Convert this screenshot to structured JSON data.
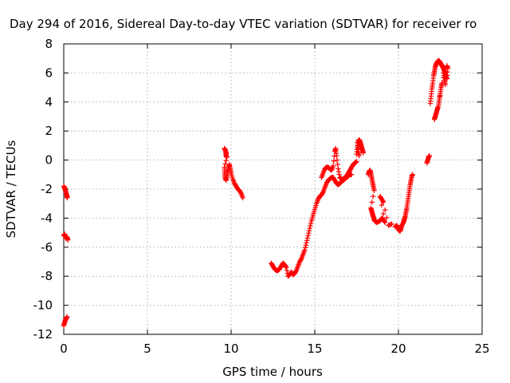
{
  "chart_data": {
    "type": "scatter",
    "title": "Day 294 of 2016, Sidereal Day-to-day VTEC variation (SDTVAR) for receiver ro",
    "xlabel": "GPS time / hours",
    "ylabel": "SDTVAR / TECUs",
    "xlim": [
      0,
      25
    ],
    "ylim": [
      -12,
      8
    ],
    "x_ticks": [
      0,
      5,
      10,
      15,
      20,
      25
    ],
    "y_ticks": [
      -12,
      -10,
      -8,
      -6,
      -4,
      -2,
      0,
      2,
      4,
      6,
      8
    ],
    "grid": true,
    "marker": "+",
    "color": "#ff0000",
    "segments": [
      [
        [
          0.0,
          -1.8
        ],
        [
          0.05,
          -1.9
        ],
        [
          0.1,
          -2.1
        ],
        [
          0.15,
          -2.3
        ],
        [
          0.2,
          -2.5
        ],
        [
          0.2,
          -2.6
        ]
      ],
      [
        [
          0.0,
          -5.2
        ],
        [
          0.05,
          -5.1
        ],
        [
          0.1,
          -5.3
        ],
        [
          0.15,
          -5.4
        ],
        [
          0.2,
          -5.3
        ],
        [
          0.25,
          -5.5
        ]
      ],
      [
        [
          0.0,
          -11.4
        ],
        [
          0.05,
          -11.2
        ],
        [
          0.1,
          -11.0
        ],
        [
          0.15,
          -10.9
        ],
        [
          0.2,
          -10.8
        ]
      ],
      [
        [
          9.6,
          0.8
        ],
        [
          9.65,
          0.7
        ],
        [
          9.7,
          0.5
        ],
        [
          9.7,
          0.3
        ],
        [
          9.75,
          0.2
        ],
        [
          9.6,
          -0.5
        ],
        [
          9.62,
          -0.9
        ],
        [
          9.65,
          -1.2
        ],
        [
          9.7,
          -1.4
        ],
        [
          9.75,
          -1.1
        ],
        [
          9.8,
          -0.8
        ],
        [
          9.85,
          -0.5
        ],
        [
          9.9,
          -0.3
        ],
        [
          9.95,
          -0.6
        ],
        [
          10.0,
          -0.9
        ],
        [
          10.1,
          -1.3
        ],
        [
          10.2,
          -1.6
        ],
        [
          10.3,
          -1.8
        ],
        [
          10.4,
          -2.0
        ],
        [
          10.5,
          -2.1
        ],
        [
          10.6,
          -2.3
        ],
        [
          10.7,
          -2.6
        ]
      ],
      [
        [
          12.4,
          -7.1
        ],
        [
          12.5,
          -7.3
        ],
        [
          12.6,
          -7.5
        ],
        [
          12.7,
          -7.6
        ],
        [
          12.8,
          -7.6
        ],
        [
          12.9,
          -7.5
        ],
        [
          13.0,
          -7.3
        ],
        [
          13.1,
          -7.1
        ],
        [
          13.2,
          -7.2
        ],
        [
          13.3,
          -7.4
        ],
        [
          13.4,
          -8.0
        ],
        [
          13.5,
          -7.9
        ],
        [
          13.6,
          -7.7
        ],
        [
          13.7,
          -7.9
        ],
        [
          13.8,
          -7.8
        ],
        [
          13.9,
          -7.6
        ],
        [
          14.0,
          -7.3
        ],
        [
          14.1,
          -7.0
        ],
        [
          14.2,
          -6.8
        ],
        [
          14.3,
          -6.5
        ],
        [
          14.4,
          -6.2
        ],
        [
          14.5,
          -5.7
        ],
        [
          14.6,
          -5.2
        ],
        [
          14.7,
          -4.7
        ],
        [
          14.8,
          -4.2
        ],
        [
          14.9,
          -3.8
        ],
        [
          15.0,
          -3.4
        ],
        [
          15.1,
          -3.0
        ],
        [
          15.2,
          -2.7
        ],
        [
          15.3,
          -2.5
        ],
        [
          15.4,
          -2.4
        ],
        [
          15.5,
          -2.2
        ],
        [
          15.6,
          -1.9
        ],
        [
          15.7,
          -1.6
        ],
        [
          15.8,
          -1.4
        ],
        [
          15.9,
          -1.3
        ],
        [
          16.0,
          -1.2
        ],
        [
          16.1,
          -1.2
        ],
        [
          16.2,
          -1.4
        ],
        [
          16.3,
          -1.6
        ],
        [
          16.4,
          -1.7
        ],
        [
          16.5,
          -1.6
        ],
        [
          16.6,
          -1.5
        ],
        [
          16.7,
          -1.3
        ],
        [
          16.8,
          -1.2
        ],
        [
          16.9,
          -1.1
        ],
        [
          17.0,
          -0.9
        ],
        [
          17.1,
          -0.7
        ],
        [
          17.2,
          -0.5
        ],
        [
          17.3,
          -0.3
        ],
        [
          17.4,
          -0.2
        ],
        [
          17.5,
          -0.1
        ]
      ],
      [
        [
          15.4,
          -1.2
        ],
        [
          15.5,
          -0.9
        ],
        [
          15.6,
          -0.6
        ],
        [
          15.7,
          -0.5
        ],
        [
          15.8,
          -0.5
        ],
        [
          15.9,
          -0.6
        ],
        [
          16.0,
          -0.7
        ],
        [
          16.1,
          -0.4
        ],
        [
          16.2,
          0.6
        ],
        [
          16.25,
          0.8
        ],
        [
          16.3,
          0.3
        ],
        [
          16.4,
          -0.6
        ],
        [
          16.5,
          -1.2
        ],
        [
          16.6,
          -1.3
        ],
        [
          16.7,
          -1.4
        ],
        [
          16.8,
          -1.3
        ],
        [
          16.9,
          -1.2
        ],
        [
          17.0,
          -1.1
        ],
        [
          17.1,
          -1.0
        ],
        [
          17.2,
          -1.0
        ]
      ],
      [
        [
          17.5,
          0.4
        ],
        [
          17.55,
          0.9
        ],
        [
          17.6,
          1.3
        ],
        [
          17.65,
          1.4
        ],
        [
          17.7,
          1.3
        ],
        [
          17.75,
          1.1
        ],
        [
          17.8,
          0.9
        ],
        [
          17.85,
          0.7
        ],
        [
          17.9,
          0.5
        ],
        [
          17.55,
          1.2
        ],
        [
          17.6,
          0.6
        ],
        [
          17.65,
          0.3
        ]
      ],
      [
        [
          18.2,
          -1.0
        ],
        [
          18.25,
          -0.8
        ],
        [
          18.3,
          -0.7
        ],
        [
          18.35,
          -0.9
        ],
        [
          18.4,
          -1.2
        ],
        [
          18.45,
          -1.5
        ],
        [
          18.5,
          -1.8
        ],
        [
          18.55,
          -2.1
        ],
        [
          18.35,
          -3.3
        ],
        [
          18.4,
          -3.5
        ],
        [
          18.45,
          -3.7
        ],
        [
          18.5,
          -3.9
        ],
        [
          18.55,
          -4.1
        ],
        [
          18.6,
          -4.2
        ],
        [
          18.7,
          -4.3
        ],
        [
          18.9,
          -4.2
        ],
        [
          19.0,
          -4.0
        ],
        [
          19.1,
          -4.1
        ],
        [
          19.2,
          -4.3
        ],
        [
          18.9,
          -2.5
        ],
        [
          19.0,
          -2.7
        ],
        [
          19.1,
          -2.9
        ],
        [
          19.4,
          -4.5
        ],
        [
          19.6,
          -4.4
        ]
      ],
      [
        [
          19.8,
          -4.6
        ],
        [
          19.9,
          -4.5
        ],
        [
          20.0,
          -4.8
        ],
        [
          20.1,
          -4.9
        ],
        [
          20.15,
          -4.7
        ],
        [
          20.2,
          -4.5
        ],
        [
          20.3,
          -4.3
        ],
        [
          20.35,
          -4.1
        ],
        [
          20.4,
          -3.9
        ],
        [
          20.45,
          -3.6
        ],
        [
          20.5,
          -3.3
        ],
        [
          20.55,
          -2.9
        ],
        [
          20.6,
          -2.5
        ],
        [
          20.65,
          -2.1
        ],
        [
          20.7,
          -1.7
        ],
        [
          20.75,
          -1.4
        ],
        [
          20.8,
          -1.1
        ],
        [
          20.85,
          -1.0
        ]
      ],
      [
        [
          21.7,
          -0.2
        ],
        [
          21.75,
          0.0
        ],
        [
          21.8,
          0.2
        ],
        [
          21.85,
          0.3
        ]
      ],
      [
        [
          21.9,
          3.9
        ],
        [
          21.95,
          4.4
        ],
        [
          22.0,
          4.9
        ],
        [
          22.05,
          5.3
        ],
        [
          22.1,
          5.8
        ],
        [
          22.15,
          6.1
        ],
        [
          22.2,
          6.4
        ],
        [
          22.25,
          6.6
        ],
        [
          22.3,
          6.7
        ],
        [
          22.35,
          6.8
        ],
        [
          22.4,
          6.85
        ],
        [
          22.45,
          6.8
        ],
        [
          22.5,
          6.7
        ],
        [
          22.55,
          6.6
        ],
        [
          22.6,
          6.5
        ],
        [
          22.65,
          6.4
        ],
        [
          22.7,
          6.3
        ],
        [
          22.75,
          6.1
        ],
        [
          22.8,
          5.9
        ],
        [
          22.85,
          5.7
        ],
        [
          22.9,
          5.6
        ],
        [
          22.95,
          6.3
        ],
        [
          22.9,
          6.5
        ],
        [
          22.6,
          5.3
        ],
        [
          22.55,
          5.0
        ],
        [
          22.5,
          4.6
        ],
        [
          22.45,
          4.2
        ],
        [
          22.4,
          3.8
        ],
        [
          22.3,
          3.4
        ],
        [
          22.2,
          3.0
        ],
        [
          22.15,
          2.8
        ],
        [
          22.25,
          3.2
        ],
        [
          22.35,
          3.6
        ],
        [
          22.7,
          6.0
        ],
        [
          22.75,
          5.5
        ],
        [
          22.8,
          5.2
        ]
      ]
    ]
  }
}
